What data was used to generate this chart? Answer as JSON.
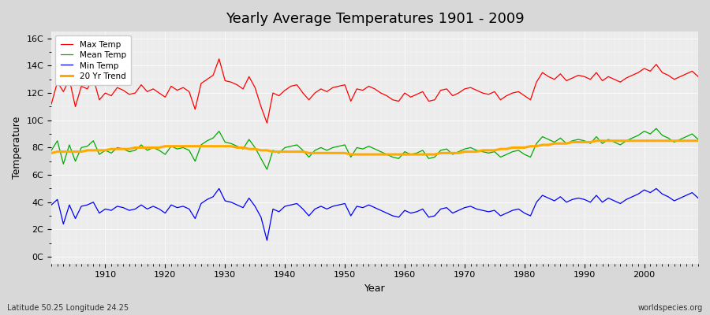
{
  "title": "Yearly Average Temperatures 1901 - 2009",
  "ylabel": "Temperature",
  "xlabel": "Year",
  "bottom_left": "Latitude 50.25 Longitude 24.25",
  "bottom_right": "worldspecies.org",
  "year_start": 1901,
  "year_end": 2009,
  "ytick_labels": [
    "0C",
    "2C",
    "4C",
    "6C",
    "8C",
    "10C",
    "12C",
    "14C",
    "16C"
  ],
  "ytick_values": [
    0,
    2,
    4,
    6,
    8,
    10,
    12,
    14,
    16
  ],
  "ylim": [
    -0.5,
    16.5
  ],
  "colors": {
    "max": "#ff0000",
    "mean": "#00aa00",
    "min": "#0000ff",
    "trend": "#ffaa00",
    "background": "#e8e8e8",
    "plot_bg": "#f0f0f0"
  },
  "max_temp": [
    11.2,
    12.8,
    12.1,
    13.0,
    11.0,
    12.5,
    12.3,
    13.1,
    11.5,
    12.0,
    11.8,
    12.4,
    12.2,
    11.9,
    12.0,
    12.6,
    12.1,
    12.3,
    12.0,
    11.7,
    12.5,
    12.2,
    12.4,
    12.1,
    10.8,
    12.7,
    13.0,
    13.3,
    14.5,
    12.9,
    12.8,
    12.6,
    12.3,
    13.2,
    12.4,
    11.0,
    9.8,
    12.0,
    11.8,
    12.2,
    12.5,
    12.6,
    12.0,
    11.5,
    12.0,
    12.3,
    12.1,
    12.4,
    12.5,
    12.6,
    11.4,
    12.3,
    12.2,
    12.5,
    12.3,
    12.0,
    11.8,
    11.5,
    11.4,
    12.0,
    11.7,
    11.9,
    12.1,
    11.4,
    11.5,
    12.2,
    12.3,
    11.8,
    12.0,
    12.3,
    12.4,
    12.2,
    12.0,
    11.9,
    12.1,
    11.5,
    11.8,
    12.0,
    12.1,
    11.8,
    11.5,
    12.8,
    13.5,
    13.2,
    13.0,
    13.4,
    12.9,
    13.1,
    13.3,
    13.2,
    13.0,
    13.5,
    12.9,
    13.2,
    13.0,
    12.8,
    13.1,
    13.3,
    13.5,
    13.8,
    13.6,
    14.1,
    13.5,
    13.3,
    13.0,
    13.2,
    13.4,
    13.6,
    13.2
  ],
  "mean_temp": [
    7.8,
    8.5,
    6.8,
    8.2,
    7.0,
    8.0,
    8.1,
    8.5,
    7.5,
    7.8,
    7.6,
    8.0,
    7.9,
    7.7,
    7.8,
    8.2,
    7.8,
    8.0,
    7.8,
    7.5,
    8.1,
    7.9,
    8.0,
    7.8,
    7.0,
    8.2,
    8.5,
    8.7,
    9.2,
    8.4,
    8.3,
    8.1,
    7.9,
    8.6,
    8.0,
    7.2,
    6.4,
    7.8,
    7.6,
    8.0,
    8.1,
    8.2,
    7.8,
    7.3,
    7.8,
    8.0,
    7.8,
    8.0,
    8.1,
    8.2,
    7.3,
    8.0,
    7.9,
    8.1,
    7.9,
    7.7,
    7.5,
    7.3,
    7.2,
    7.7,
    7.5,
    7.6,
    7.8,
    7.2,
    7.3,
    7.8,
    7.9,
    7.5,
    7.7,
    7.9,
    8.0,
    7.8,
    7.7,
    7.6,
    7.7,
    7.3,
    7.5,
    7.7,
    7.8,
    7.5,
    7.3,
    8.3,
    8.8,
    8.6,
    8.4,
    8.7,
    8.3,
    8.5,
    8.6,
    8.5,
    8.3,
    8.8,
    8.3,
    8.6,
    8.4,
    8.2,
    8.5,
    8.7,
    8.9,
    9.2,
    9.0,
    9.4,
    8.9,
    8.7,
    8.4,
    8.6,
    8.8,
    9.0,
    8.6
  ],
  "min_temp": [
    3.8,
    4.2,
    2.4,
    3.8,
    2.8,
    3.7,
    3.8,
    4.0,
    3.2,
    3.5,
    3.4,
    3.7,
    3.6,
    3.4,
    3.5,
    3.8,
    3.5,
    3.7,
    3.5,
    3.2,
    3.8,
    3.6,
    3.7,
    3.5,
    2.8,
    3.9,
    4.2,
    4.4,
    5.0,
    4.1,
    4.0,
    3.8,
    3.6,
    4.3,
    3.7,
    2.9,
    1.2,
    3.5,
    3.3,
    3.7,
    3.8,
    3.9,
    3.5,
    3.0,
    3.5,
    3.7,
    3.5,
    3.7,
    3.8,
    3.9,
    3.0,
    3.7,
    3.6,
    3.8,
    3.6,
    3.4,
    3.2,
    3.0,
    2.9,
    3.4,
    3.2,
    3.3,
    3.5,
    2.9,
    3.0,
    3.5,
    3.6,
    3.2,
    3.4,
    3.6,
    3.7,
    3.5,
    3.4,
    3.3,
    3.4,
    3.0,
    3.2,
    3.4,
    3.5,
    3.2,
    3.0,
    4.0,
    4.5,
    4.3,
    4.1,
    4.4,
    4.0,
    4.2,
    4.3,
    4.2,
    4.0,
    4.5,
    4.0,
    4.3,
    4.1,
    3.9,
    4.2,
    4.4,
    4.6,
    4.9,
    4.7,
    5.0,
    4.6,
    4.4,
    4.1,
    4.3,
    4.5,
    4.7,
    4.3
  ],
  "trend": [
    7.6,
    7.7,
    7.7,
    7.7,
    7.7,
    7.7,
    7.8,
    7.8,
    7.8,
    7.8,
    7.9,
    7.9,
    7.9,
    7.9,
    8.0,
    8.0,
    8.0,
    8.0,
    8.0,
    8.1,
    8.1,
    8.1,
    8.1,
    8.1,
    8.1,
    8.1,
    8.1,
    8.1,
    8.1,
    8.1,
    8.1,
    8.0,
    8.0,
    7.9,
    7.9,
    7.8,
    7.8,
    7.7,
    7.7,
    7.7,
    7.7,
    7.7,
    7.7,
    7.6,
    7.6,
    7.6,
    7.6,
    7.6,
    7.6,
    7.6,
    7.5,
    7.5,
    7.5,
    7.5,
    7.5,
    7.5,
    7.5,
    7.5,
    7.5,
    7.5,
    7.5,
    7.5,
    7.5,
    7.5,
    7.5,
    7.6,
    7.6,
    7.6,
    7.6,
    7.7,
    7.7,
    7.7,
    7.8,
    7.8,
    7.8,
    7.9,
    7.9,
    8.0,
    8.0,
    8.0,
    8.1,
    8.1,
    8.2,
    8.2,
    8.3,
    8.3,
    8.3,
    8.4,
    8.4,
    8.4,
    8.4,
    8.5,
    8.5,
    8.5,
    8.5,
    8.5,
    8.5,
    8.5,
    8.5,
    8.5,
    8.5,
    8.5,
    8.5,
    8.5,
    8.5,
    8.5,
    8.5,
    8.5,
    8.5
  ]
}
